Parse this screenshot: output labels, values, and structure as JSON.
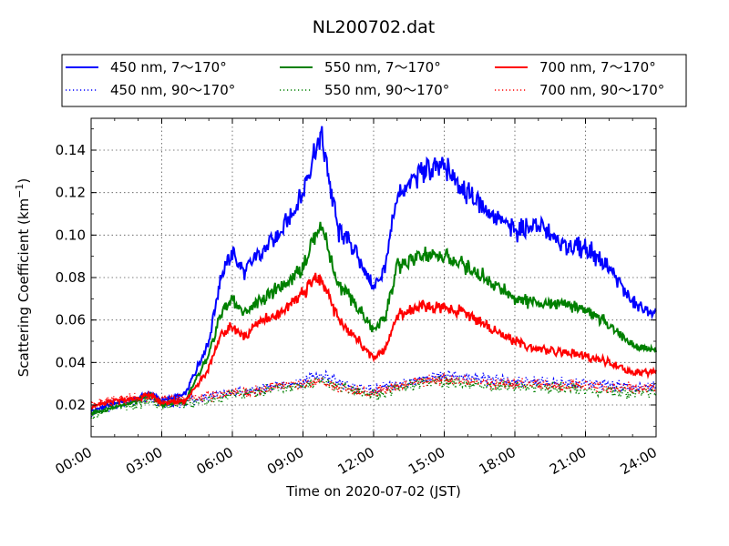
{
  "chart_data": {
    "type": "line",
    "title": "NL200702.dat",
    "xlabel": "Time on 2020-07-02 (JST)",
    "ylabel": "Scattering Coefficient (km",
    "ylabel_sup": "−1",
    "ylabel_tail": ")",
    "xlim": [
      "2020-07-02 00:00",
      "2020-07-03 00:00"
    ],
    "ylim": [
      0.005,
      0.155
    ],
    "x_ticks": [
      "00:00",
      "03:00",
      "06:00",
      "09:00",
      "12:00",
      "15:00",
      "18:00",
      "21:00",
      "24:00"
    ],
    "y_ticks": [
      "0.02",
      "0.04",
      "0.06",
      "0.08",
      "0.10",
      "0.12",
      "0.14"
    ],
    "grid": true,
    "legend_position": "top, above plot",
    "x_hours": [
      0,
      1,
      2,
      2.5,
      3,
      4,
      5,
      5.5,
      6,
      6.5,
      7,
      8,
      9,
      9.5,
      9.8,
      10.5,
      11,
      12,
      12.5,
      13,
      14,
      15,
      16,
      17,
      18,
      19,
      20,
      21,
      22,
      23,
      24
    ],
    "series": [
      {
        "name": "450 nm, 7～170°",
        "color": "#0000ff",
        "style": "solid",
        "values": [
          0.017,
          0.021,
          0.023,
          0.026,
          0.022,
          0.025,
          0.05,
          0.08,
          0.092,
          0.082,
          0.09,
          0.1,
          0.12,
          0.14,
          0.146,
          0.102,
          0.097,
          0.075,
          0.085,
          0.118,
          0.13,
          0.132,
          0.12,
          0.11,
          0.102,
          0.105,
          0.095,
          0.094,
          0.085,
          0.068,
          0.062
        ]
      },
      {
        "name": "450 nm, 90～170°",
        "color": "#0000ff",
        "style": "dotted",
        "values": [
          0.016,
          0.02,
          0.022,
          0.023,
          0.021,
          0.022,
          0.024,
          0.025,
          0.026,
          0.026,
          0.027,
          0.029,
          0.031,
          0.033,
          0.034,
          0.03,
          0.029,
          0.027,
          0.028,
          0.03,
          0.032,
          0.034,
          0.033,
          0.032,
          0.031,
          0.031,
          0.03,
          0.03,
          0.029,
          0.028,
          0.029
        ]
      },
      {
        "name": "550 nm, 7～170°",
        "color": "#008000",
        "style": "solid",
        "values": [
          0.016,
          0.019,
          0.022,
          0.025,
          0.02,
          0.022,
          0.043,
          0.063,
          0.07,
          0.063,
          0.068,
          0.075,
          0.085,
          0.1,
          0.105,
          0.076,
          0.071,
          0.055,
          0.062,
          0.085,
          0.09,
          0.09,
          0.085,
          0.078,
          0.07,
          0.068,
          0.068,
          0.065,
          0.058,
          0.048,
          0.046
        ]
      },
      {
        "name": "550 nm, 90～170°",
        "color": "#008000",
        "style": "dotted",
        "values": [
          0.015,
          0.019,
          0.021,
          0.022,
          0.02,
          0.021,
          0.022,
          0.023,
          0.025,
          0.025,
          0.026,
          0.028,
          0.029,
          0.031,
          0.032,
          0.028,
          0.027,
          0.025,
          0.026,
          0.028,
          0.03,
          0.031,
          0.03,
          0.029,
          0.029,
          0.028,
          0.028,
          0.027,
          0.026,
          0.026,
          0.026
        ]
      },
      {
        "name": "700 nm, 7～170°",
        "color": "#ff0000",
        "style": "solid",
        "values": [
          0.019,
          0.022,
          0.023,
          0.025,
          0.021,
          0.022,
          0.037,
          0.053,
          0.057,
          0.052,
          0.058,
          0.063,
          0.072,
          0.08,
          0.079,
          0.06,
          0.055,
          0.042,
          0.047,
          0.062,
          0.066,
          0.066,
          0.063,
          0.056,
          0.05,
          0.046,
          0.045,
          0.043,
          0.04,
          0.035,
          0.036
        ]
      },
      {
        "name": "700 nm, 90～170°",
        "color": "#ff0000",
        "style": "dotted",
        "values": [
          0.02,
          0.022,
          0.023,
          0.024,
          0.022,
          0.023,
          0.024,
          0.025,
          0.026,
          0.026,
          0.027,
          0.029,
          0.03,
          0.031,
          0.031,
          0.028,
          0.027,
          0.026,
          0.027,
          0.029,
          0.031,
          0.032,
          0.031,
          0.03,
          0.03,
          0.03,
          0.029,
          0.029,
          0.028,
          0.028,
          0.028
        ]
      }
    ]
  }
}
